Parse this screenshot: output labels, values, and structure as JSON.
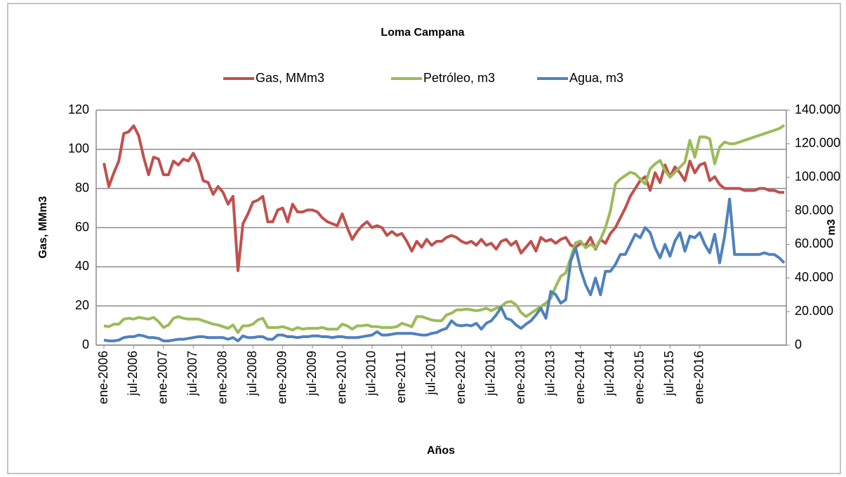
{
  "chart_data": {
    "type": "line",
    "title": "Loma Campana",
    "xlabel": "Años",
    "ylabel": "Gas, MMm3",
    "y2label": "m3",
    "categories": [
      "ene-2006",
      null,
      null,
      null,
      null,
      null,
      "jul-2006",
      null,
      null,
      null,
      null,
      null,
      "ene-2007",
      null,
      null,
      null,
      null,
      null,
      "jul-2007",
      null,
      null,
      null,
      null,
      null,
      "ene-2008",
      null,
      null,
      null,
      null,
      null,
      "jul-2008",
      null,
      null,
      null,
      null,
      null,
      "ene-2009",
      null,
      null,
      null,
      null,
      null,
      "jul-2009",
      null,
      null,
      null,
      null,
      null,
      "ene-2010",
      null,
      null,
      null,
      null,
      null,
      "jul-2010",
      null,
      null,
      null,
      null,
      null,
      "ene-2011",
      null,
      null,
      null,
      null,
      null,
      "jul-2011",
      null,
      null,
      null,
      null,
      null,
      "ene-2012",
      null,
      null,
      null,
      null,
      null,
      "jul-2012",
      null,
      null,
      null,
      null,
      null,
      "ene-2013",
      null,
      null,
      null,
      null,
      null,
      "jul-2013",
      null,
      null,
      null,
      null,
      null,
      "ene-2014",
      null,
      null,
      null,
      null,
      null,
      "jul-2014",
      null,
      null,
      null,
      null,
      null,
      "ene-2015",
      null,
      null,
      null,
      null,
      null,
      "jul-2015",
      null,
      null,
      null,
      null,
      null,
      "ene-2016",
      null,
      null,
      null,
      null,
      null,
      null,
      null,
      null,
      null,
      null,
      null,
      null,
      null,
      null,
      null,
      null,
      null
    ],
    "series": [
      {
        "name": "Gas, MMm3",
        "color": "#c0504d",
        "axis": "y",
        "values": [
          93,
          81,
          88,
          94,
          108,
          109,
          112,
          107,
          96,
          87,
          96,
          95,
          87,
          87,
          94,
          92,
          95,
          94,
          98,
          93,
          84,
          83,
          77,
          81,
          78,
          72,
          76,
          38,
          62,
          67,
          73,
          74,
          76,
          63,
          63,
          69,
          70,
          63,
          72,
          68,
          68,
          69,
          69,
          68,
          65,
          63,
          62,
          61,
          67,
          60,
          54,
          58,
          61,
          63,
          60,
          61,
          60,
          56,
          58,
          56,
          57,
          53,
          48,
          53,
          50,
          54,
          51,
          53,
          53,
          55,
          56,
          55,
          53,
          52,
          53,
          51,
          54,
          51,
          52,
          49,
          53,
          54,
          51,
          53,
          47,
          50,
          53,
          48,
          55,
          53,
          54,
          52,
          54,
          55,
          51,
          50,
          52,
          51,
          55,
          49,
          54,
          52,
          57,
          60,
          65,
          70,
          76,
          80,
          84,
          86,
          79,
          88,
          83,
          92,
          86,
          91,
          88,
          84,
          94,
          88,
          92,
          93,
          84,
          86,
          82,
          80,
          80,
          80,
          80,
          79,
          79,
          79,
          80,
          80,
          79,
          79,
          78,
          78
        ]
      },
      {
        "name": "Petróleo, m3",
        "color": "#9bbb59",
        "axis": "y2",
        "values": [
          11500,
          11000,
          12500,
          12500,
          15500,
          16000,
          15500,
          16500,
          16000,
          15500,
          16500,
          14000,
          10500,
          12000,
          16000,
          17000,
          16000,
          15500,
          15500,
          15500,
          14500,
          13500,
          12500,
          12000,
          11000,
          10000,
          12000,
          7500,
          11500,
          11500,
          12500,
          15000,
          16000,
          10500,
          10500,
          10500,
          11000,
          10000,
          9000,
          10500,
          9500,
          10000,
          10000,
          10000,
          10500,
          9500,
          9500,
          9500,
          12500,
          11500,
          9500,
          11500,
          11500,
          12000,
          11000,
          11000,
          10500,
          10500,
          10500,
          11000,
          13000,
          12000,
          11000,
          17000,
          17000,
          16000,
          15000,
          14500,
          14500,
          18000,
          19000,
          21000,
          21000,
          21500,
          21000,
          20500,
          21000,
          22000,
          20500,
          22000,
          23000,
          25500,
          26000,
          24000,
          19500,
          17000,
          19000,
          21000,
          23000,
          25000,
          28000,
          35000,
          41000,
          43000,
          52000,
          61000,
          62000,
          58000,
          60000,
          58000,
          63000,
          70000,
          80000,
          96000,
          99000,
          101000,
          103000,
          102000,
          99000,
          96000,
          105000,
          108000,
          110000,
          104000,
          100000,
          103000,
          106000,
          109000,
          122000,
          112000,
          124000,
          124000,
          123000,
          108000,
          118000,
          121000,
          120000,
          120000,
          121000,
          122000,
          123000,
          124000,
          125000,
          126000,
          127000,
          128000,
          129000,
          131000
        ]
      },
      {
        "name": "Agua, m3",
        "color": "#4f81bd",
        "axis": "y2",
        "values": [
          3000,
          2500,
          2500,
          3000,
          4500,
          5000,
          5000,
          6000,
          5500,
          4500,
          4500,
          4000,
          2500,
          2500,
          3000,
          3500,
          3500,
          4000,
          4500,
          5000,
          5000,
          4500,
          4500,
          4500,
          4500,
          3500,
          4500,
          2500,
          5500,
          4500,
          4500,
          5000,
          5000,
          3500,
          3500,
          6000,
          6000,
          5000,
          5000,
          4500,
          5000,
          5000,
          5500,
          5500,
          5000,
          5000,
          4500,
          5000,
          5000,
          4500,
          4500,
          4500,
          5000,
          5500,
          6000,
          8000,
          6000,
          6000,
          6500,
          7000,
          7000,
          7000,
          7000,
          6500,
          6000,
          6000,
          7000,
          7500,
          9000,
          10000,
          14500,
          12000,
          11500,
          12000,
          11500,
          13000,
          9500,
          13000,
          14500,
          18000,
          22500,
          16000,
          15000,
          12000,
          10000,
          12500,
          14500,
          18000,
          22000,
          16000,
          32000,
          30000,
          25000,
          27000,
          50000,
          58000,
          45000,
          36000,
          30000,
          40000,
          30000,
          44000,
          44000,
          48000,
          54000,
          54000,
          60000,
          66000,
          64000,
          70000,
          67000,
          58000,
          52000,
          60000,
          53000,
          62000,
          67000,
          56000,
          65000,
          64000,
          67000,
          60000,
          55000,
          66000,
          49000,
          65000,
          87000,
          54000,
          54000,
          54000,
          54000,
          54000,
          54000,
          55000,
          54000,
          54000,
          52000,
          49000
        ]
      }
    ],
    "ylim": [
      0,
      120
    ],
    "yticks": [
      0,
      20,
      40,
      60,
      80,
      100,
      120
    ],
    "y2lim": [
      0,
      140000
    ],
    "y2ticks": [
      0,
      {
        "value": 20000,
        "label": "20.000"
      },
      {
        "value": 40000,
        "label": "40.000"
      },
      {
        "value": 60000,
        "label": "60.000"
      },
      {
        "value": 80000,
        "label": "80.000"
      },
      {
        "value": 100000,
        "label": "100.000"
      },
      {
        "value": 120000,
        "label": "120.000"
      },
      {
        "value": 140000,
        "label": "140.000"
      }
    ],
    "grid": true,
    "legend": "top"
  }
}
